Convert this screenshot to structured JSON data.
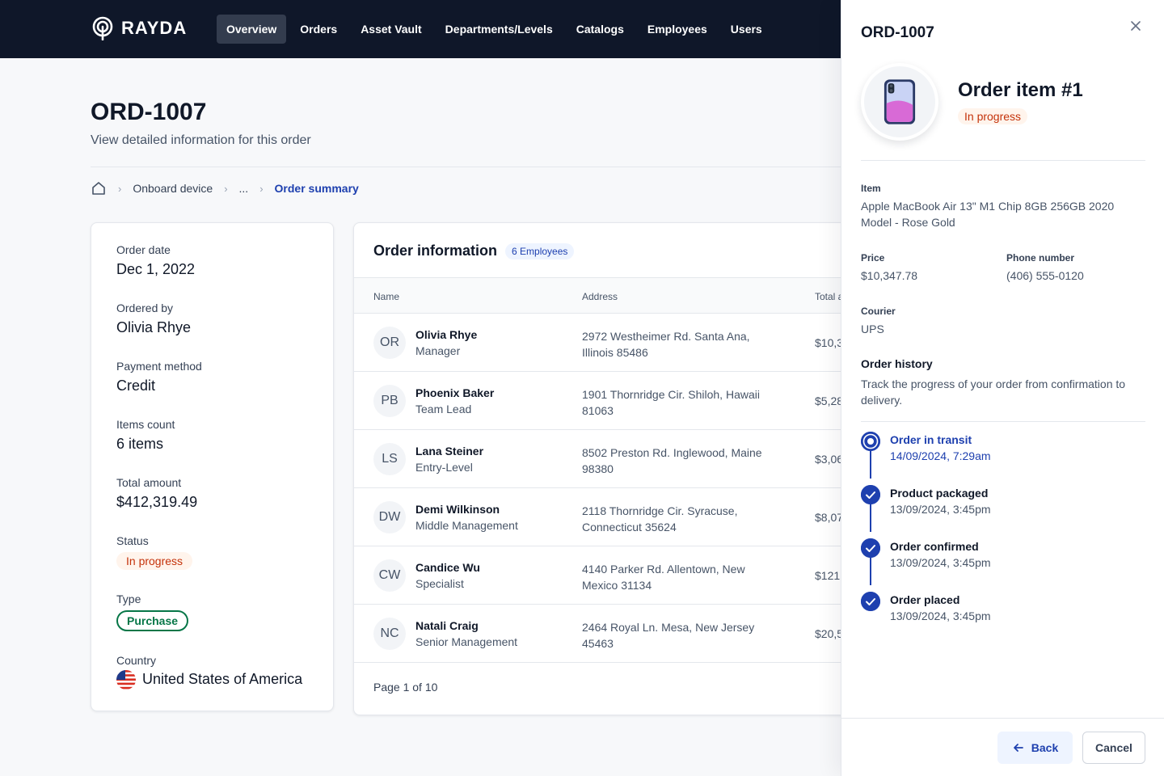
{
  "app": {
    "logo_text": "RAYDA"
  },
  "nav": {
    "items": [
      {
        "label": "Overview",
        "active": true
      },
      {
        "label": "Orders"
      },
      {
        "label": "Asset Vault"
      },
      {
        "label": "Departments/Levels"
      },
      {
        "label": "Catalogs"
      },
      {
        "label": "Employees"
      },
      {
        "label": "Users"
      }
    ]
  },
  "page": {
    "title": "ORD-1007",
    "subtitle": "View detailed information for this order"
  },
  "breadcrumb": {
    "home_icon": "home-icon",
    "items": [
      "Onboard device",
      "...",
      "Order summary"
    ]
  },
  "summary": {
    "order_date_label": "Order date",
    "order_date": "Dec 1, 2022",
    "ordered_by_label": "Ordered by",
    "ordered_by": "Olivia Rhye",
    "payment_label": "Payment method",
    "payment": "Credit",
    "items_count_label": "Items count",
    "items_count": "6 items",
    "total_label": "Total amount",
    "total": "$412,319.49",
    "status_label": "Status",
    "status": "In progress",
    "type_label": "Type",
    "type": "Purchase",
    "country_label": "Country",
    "country": "United States of America"
  },
  "order_info": {
    "title": "Order information",
    "badge": "6 Employees",
    "columns": [
      "Name",
      "Address",
      "Total a"
    ],
    "rows": [
      {
        "initials": "OR",
        "name": "Olivia Rhye",
        "role": "Manager",
        "address": "2972 Westheimer Rd. Santa Ana, Illinois 85486",
        "total": "$10,3"
      },
      {
        "initials": "PB",
        "name": "Phoenix Baker",
        "role": "Team Lead",
        "address": "1901 Thornridge Cir. Shiloh, Hawaii 81063",
        "total": "$5,28"
      },
      {
        "initials": "LS",
        "name": "Lana Steiner",
        "role": "Entry-Level",
        "address": "8502 Preston Rd. Inglewood, Maine 98380",
        "total": "$3,06"
      },
      {
        "initials": "DW",
        "name": "Demi Wilkinson",
        "role": "Middle Management",
        "address": "2118 Thornridge Cir. Syracuse, Connecticut 35624",
        "total": "$8,07"
      },
      {
        "initials": "CW",
        "name": "Candice Wu",
        "role": "Specialist",
        "address": "4140 Parker Rd. Allentown, New Mexico 31134",
        "total": "$121"
      },
      {
        "initials": "NC",
        "name": "Natali Craig",
        "role": "Senior Management",
        "address": "2464 Royal Ln. Mesa, New Jersey 45463",
        "total": "$20,5"
      }
    ],
    "pagination": "Page 1 of 10"
  },
  "drawer": {
    "title": "ORD-1007",
    "close_icon": "close-icon",
    "item_title": "Order item #1",
    "item_status": "In progress",
    "item_label": "Item",
    "item_value": "Apple MacBook Air 13\" M1 Chip 8GB 256GB 2020 Model - Rose Gold",
    "price_label": "Price",
    "price_value": "$10,347.78",
    "phone_label": "Phone number",
    "phone_value": "(406) 555-0120",
    "courier_label": "Courier",
    "courier_value": "UPS",
    "history_title": "Order history",
    "history_desc": "Track the progress of your order from confirmation to delivery.",
    "timeline": [
      {
        "title": "Order in transit",
        "date": "14/09/2024, 7:29am",
        "current": true
      },
      {
        "title": "Product packaged",
        "date": "13/09/2024, 3:45pm"
      },
      {
        "title": "Order confirmed",
        "date": "13/09/2024, 3:45pm"
      },
      {
        "title": "Order placed",
        "date": "13/09/2024, 3:45pm"
      }
    ],
    "back_label": "Back",
    "cancel_label": "Cancel"
  },
  "colors": {
    "nav_bg": "#0f1729",
    "accent": "#1e40af",
    "warning_text": "#c4320a",
    "success": "#067647"
  }
}
